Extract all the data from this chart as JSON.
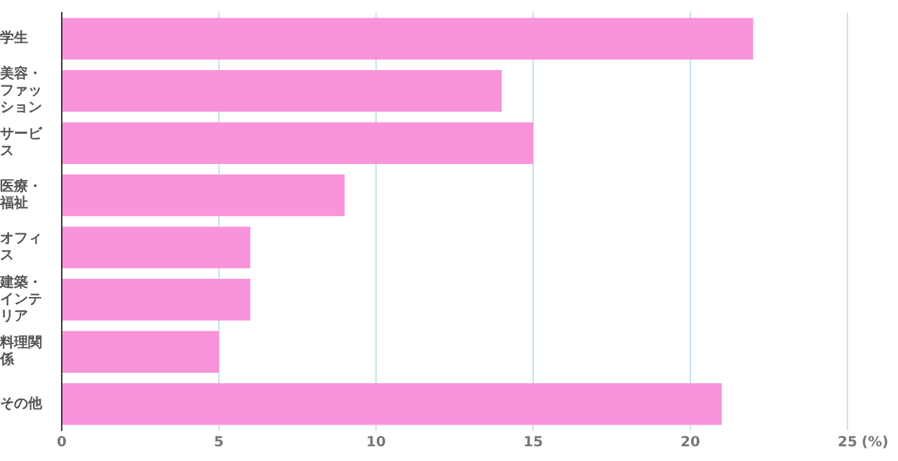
{
  "chart_data": {
    "type": "bar",
    "orientation": "horizontal",
    "categories": [
      "学生",
      "美容・ファッション",
      "サービス",
      "医療・福祉",
      "オフィス",
      "建築・インテリア",
      "料理関係",
      "その他"
    ],
    "values": [
      22,
      14,
      15,
      9,
      6,
      6,
      5,
      21
    ],
    "color": "#f993dc",
    "xlim": [
      0,
      25
    ],
    "xticks": [
      0,
      5,
      10,
      15,
      20,
      25
    ],
    "xlabel": "(%)",
    "grid": "x"
  }
}
